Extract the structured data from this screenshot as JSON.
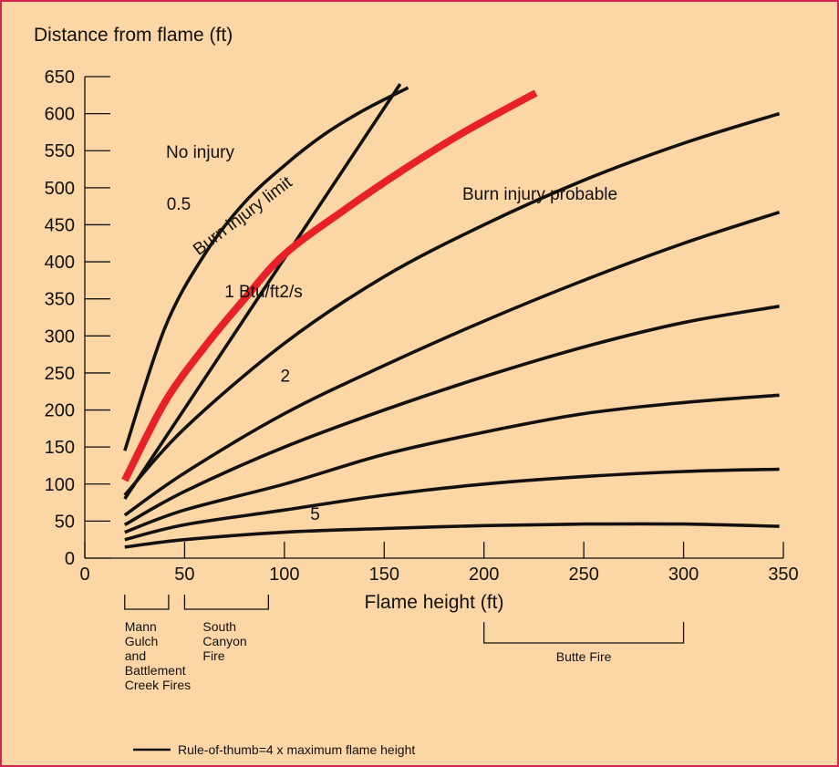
{
  "colors": {
    "background": "#fcd6a4",
    "border": "#d4244f",
    "limit": "#e8202a",
    "line": "#111111"
  },
  "chart_data": {
    "type": "line",
    "ylabel": "Distance from flame (ft)",
    "xlabel": "Flame height (ft)",
    "xlim": [
      0,
      350
    ],
    "ylim": [
      0,
      650
    ],
    "x_ticks": [
      0,
      50,
      100,
      150,
      200,
      250,
      300,
      350
    ],
    "y_ticks": [
      0,
      50,
      100,
      150,
      200,
      250,
      300,
      350,
      400,
      450,
      500,
      550,
      600,
      650
    ],
    "grid": false,
    "region_labels": [
      "No injury",
      "Burn injury probable"
    ],
    "series": [
      {
        "name": "0.5",
        "label_at": [
          41,
          470
        ],
        "points": [
          [
            20,
            145
          ],
          [
            40,
            310
          ],
          [
            60,
            410
          ],
          [
            80,
            480
          ],
          [
            100,
            530
          ],
          [
            120,
            572
          ],
          [
            140,
            605
          ],
          [
            162,
            635
          ]
        ]
      },
      {
        "name": "Burn injury limit",
        "kind": "limit",
        "label_at": [
          57,
          408
        ],
        "points": [
          [
            20,
            105
          ],
          [
            40,
            210
          ],
          [
            60,
            285
          ],
          [
            80,
            350
          ],
          [
            100,
            410
          ],
          [
            130,
            470
          ],
          [
            160,
            525
          ],
          [
            190,
            575
          ],
          [
            226,
            628
          ]
        ]
      },
      {
        "name": "Rule-of-thumb=4 x maximum flame height",
        "kind": "rule",
        "points": [
          [
            20,
            80
          ],
          [
            158,
            640
          ]
        ]
      },
      {
        "name": "1 Btu/ft2/s",
        "label_at": [
          70,
          352
        ],
        "points": [
          [
            20,
            85
          ],
          [
            50,
            175
          ],
          [
            100,
            290
          ],
          [
            150,
            380
          ],
          [
            200,
            450
          ],
          [
            250,
            510
          ],
          [
            300,
            560
          ],
          [
            348,
            600
          ]
        ]
      },
      {
        "name": "",
        "points": [
          [
            20,
            58
          ],
          [
            50,
            115
          ],
          [
            100,
            195
          ],
          [
            150,
            260
          ],
          [
            200,
            320
          ],
          [
            250,
            375
          ],
          [
            300,
            425
          ],
          [
            348,
            467
          ]
        ]
      },
      {
        "name": "2",
        "label_at": [
          98,
          238
        ],
        "points": [
          [
            20,
            45
          ],
          [
            50,
            90
          ],
          [
            100,
            150
          ],
          [
            150,
            200
          ],
          [
            200,
            245
          ],
          [
            250,
            285
          ],
          [
            300,
            318
          ],
          [
            348,
            340
          ]
        ]
      },
      {
        "name": "",
        "points": [
          [
            20,
            35
          ],
          [
            50,
            65
          ],
          [
            100,
            100
          ],
          [
            150,
            140
          ],
          [
            200,
            170
          ],
          [
            250,
            195
          ],
          [
            300,
            210
          ],
          [
            348,
            220
          ]
        ]
      },
      {
        "name": "",
        "points": [
          [
            20,
            25
          ],
          [
            50,
            45
          ],
          [
            100,
            65
          ],
          [
            150,
            85
          ],
          [
            200,
            100
          ],
          [
            250,
            110
          ],
          [
            300,
            117
          ],
          [
            348,
            120
          ]
        ]
      },
      {
        "name": "5",
        "label_at": [
          113,
          52
        ],
        "points": [
          [
            20,
            15
          ],
          [
            50,
            25
          ],
          [
            100,
            35
          ],
          [
            150,
            40
          ],
          [
            200,
            44
          ],
          [
            250,
            46
          ],
          [
            300,
            46
          ],
          [
            348,
            43
          ]
        ]
      }
    ],
    "brackets": [
      {
        "range": [
          20,
          42
        ],
        "label": [
          "Mann",
          "Gulch",
          "and",
          "Battlement",
          "Creek Fires"
        ]
      },
      {
        "range": [
          50,
          92
        ],
        "label": [
          "South",
          "Canyon",
          "Fire"
        ]
      },
      {
        "range": [
          200,
          300
        ],
        "label": [
          "Butte Fire"
        ]
      }
    ],
    "legend": {
      "placement": "bottom-left",
      "text": "Rule-of-thumb=4 x maximum flame height"
    }
  }
}
